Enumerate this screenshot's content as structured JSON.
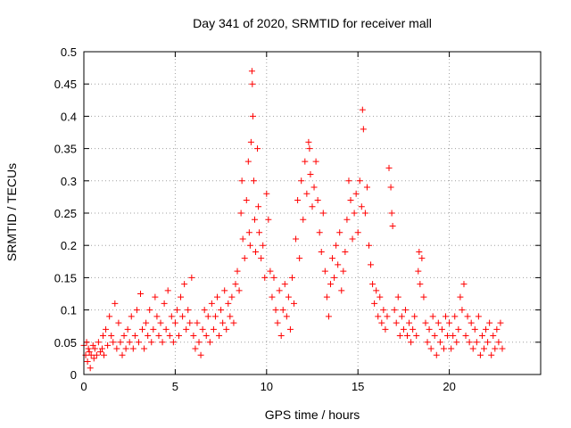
{
  "chart_data": {
    "type": "scatter",
    "title": "Day 341 of 2020, SRMTID for receiver mall",
    "xlabel": "GPS time / hours",
    "ylabel": "SRMTID / TECUs",
    "xlim": [
      0,
      25
    ],
    "ylim": [
      0,
      0.5
    ],
    "xticks": [
      "0",
      "5",
      "10",
      "15",
      "20"
    ],
    "yticks": [
      "0",
      "0.05",
      "0.1",
      "0.15",
      "0.2",
      "0.25",
      "0.3",
      "0.35",
      "0.4",
      "0.45",
      "0.5"
    ],
    "grid": true,
    "marker": "+",
    "color": "#ff0000",
    "series": [
      {
        "name": "",
        "points": [
          [
            0.0,
            0.045
          ],
          [
            0.1,
            0.03
          ],
          [
            0.15,
            0.05
          ],
          [
            0.2,
            0.02
          ],
          [
            0.25,
            0.04
          ],
          [
            0.3,
            0.035
          ],
          [
            0.35,
            0.01
          ],
          [
            0.4,
            0.03
          ],
          [
            0.5,
            0.045
          ],
          [
            0.55,
            0.025
          ],
          [
            0.6,
            0.04
          ],
          [
            0.7,
            0.03
          ],
          [
            0.8,
            0.05
          ],
          [
            0.9,
            0.035
          ],
          [
            1.0,
            0.04
          ],
          [
            1.05,
            0.06
          ],
          [
            1.1,
            0.03
          ],
          [
            1.2,
            0.07
          ],
          [
            1.3,
            0.045
          ],
          [
            1.4,
            0.09
          ],
          [
            1.5,
            0.06
          ],
          [
            1.6,
            0.05
          ],
          [
            1.7,
            0.11
          ],
          [
            1.8,
            0.04
          ],
          [
            1.9,
            0.08
          ],
          [
            2.0,
            0.05
          ],
          [
            2.1,
            0.03
          ],
          [
            2.2,
            0.06
          ],
          [
            2.3,
            0.04
          ],
          [
            2.4,
            0.07
          ],
          [
            2.5,
            0.05
          ],
          [
            2.6,
            0.09
          ],
          [
            2.7,
            0.04
          ],
          [
            2.8,
            0.06
          ],
          [
            2.9,
            0.1
          ],
          [
            3.0,
            0.05
          ],
          [
            3.1,
            0.125
          ],
          [
            3.2,
            0.07
          ],
          [
            3.3,
            0.04
          ],
          [
            3.4,
            0.08
          ],
          [
            3.5,
            0.06
          ],
          [
            3.6,
            0.1
          ],
          [
            3.7,
            0.05
          ],
          [
            3.8,
            0.07
          ],
          [
            3.9,
            0.12
          ],
          [
            4.0,
            0.09
          ],
          [
            4.1,
            0.06
          ],
          [
            4.2,
            0.08
          ],
          [
            4.3,
            0.05
          ],
          [
            4.4,
            0.11
          ],
          [
            4.5,
            0.07
          ],
          [
            4.6,
            0.13
          ],
          [
            4.7,
            0.06
          ],
          [
            4.8,
            0.09
          ],
          [
            4.9,
            0.05
          ],
          [
            5.0,
            0.08
          ],
          [
            5.1,
            0.1
          ],
          [
            5.2,
            0.06
          ],
          [
            5.3,
            0.12
          ],
          [
            5.4,
            0.09
          ],
          [
            5.5,
            0.14
          ],
          [
            5.6,
            0.07
          ],
          [
            5.7,
            0.1
          ],
          [
            5.8,
            0.08
          ],
          [
            5.9,
            0.15
          ],
          [
            6.0,
            0.06
          ],
          [
            6.1,
            0.04
          ],
          [
            6.2,
            0.08
          ],
          [
            6.3,
            0.05
          ],
          [
            6.4,
            0.03
          ],
          [
            6.5,
            0.07
          ],
          [
            6.6,
            0.1
          ],
          [
            6.7,
            0.06
          ],
          [
            6.8,
            0.09
          ],
          [
            6.9,
            0.05
          ],
          [
            7.0,
            0.11
          ],
          [
            7.1,
            0.07
          ],
          [
            7.2,
            0.09
          ],
          [
            7.3,
            0.12
          ],
          [
            7.4,
            0.06
          ],
          [
            7.5,
            0.1
          ],
          [
            7.6,
            0.08
          ],
          [
            7.7,
            0.13
          ],
          [
            7.8,
            0.07
          ],
          [
            7.9,
            0.11
          ],
          [
            8.0,
            0.09
          ],
          [
            8.1,
            0.12
          ],
          [
            8.2,
            0.08
          ],
          [
            8.3,
            0.14
          ],
          [
            8.4,
            0.16
          ],
          [
            8.5,
            0.13
          ],
          [
            8.6,
            0.25
          ],
          [
            8.65,
            0.3
          ],
          [
            8.7,
            0.21
          ],
          [
            8.8,
            0.18
          ],
          [
            8.9,
            0.27
          ],
          [
            9.0,
            0.33
          ],
          [
            9.05,
            0.22
          ],
          [
            9.1,
            0.2
          ],
          [
            9.15,
            0.36
          ],
          [
            9.2,
            0.47
          ],
          [
            9.22,
            0.45
          ],
          [
            9.25,
            0.4
          ],
          [
            9.3,
            0.3
          ],
          [
            9.35,
            0.24
          ],
          [
            9.4,
            0.19
          ],
          [
            9.5,
            0.35
          ],
          [
            9.55,
            0.26
          ],
          [
            9.6,
            0.22
          ],
          [
            9.7,
            0.18
          ],
          [
            9.8,
            0.2
          ],
          [
            9.9,
            0.15
          ],
          [
            10.0,
            0.28
          ],
          [
            10.1,
            0.24
          ],
          [
            10.2,
            0.16
          ],
          [
            10.3,
            0.12
          ],
          [
            10.4,
            0.15
          ],
          [
            10.5,
            0.1
          ],
          [
            10.6,
            0.08
          ],
          [
            10.7,
            0.13
          ],
          [
            10.8,
            0.06
          ],
          [
            10.9,
            0.1
          ],
          [
            11.0,
            0.14
          ],
          [
            11.1,
            0.09
          ],
          [
            11.2,
            0.12
          ],
          [
            11.3,
            0.07
          ],
          [
            11.4,
            0.15
          ],
          [
            11.5,
            0.11
          ],
          [
            11.6,
            0.21
          ],
          [
            11.7,
            0.27
          ],
          [
            11.8,
            0.18
          ],
          [
            11.9,
            0.3
          ],
          [
            12.0,
            0.24
          ],
          [
            12.1,
            0.33
          ],
          [
            12.2,
            0.28
          ],
          [
            12.3,
            0.36
          ],
          [
            12.35,
            0.35
          ],
          [
            12.4,
            0.31
          ],
          [
            12.5,
            0.26
          ],
          [
            12.6,
            0.29
          ],
          [
            12.7,
            0.33
          ],
          [
            12.8,
            0.27
          ],
          [
            12.9,
            0.22
          ],
          [
            13.0,
            0.19
          ],
          [
            13.1,
            0.25
          ],
          [
            13.2,
            0.16
          ],
          [
            13.3,
            0.12
          ],
          [
            13.4,
            0.09
          ],
          [
            13.5,
            0.14
          ],
          [
            13.6,
            0.18
          ],
          [
            13.7,
            0.15
          ],
          [
            13.8,
            0.2
          ],
          [
            13.9,
            0.17
          ],
          [
            14.0,
            0.22
          ],
          [
            14.1,
            0.13
          ],
          [
            14.2,
            0.16
          ],
          [
            14.3,
            0.19
          ],
          [
            14.4,
            0.24
          ],
          [
            14.5,
            0.3
          ],
          [
            14.6,
            0.27
          ],
          [
            14.7,
            0.21
          ],
          [
            14.8,
            0.25
          ],
          [
            14.9,
            0.28
          ],
          [
            15.0,
            0.22
          ],
          [
            15.1,
            0.3
          ],
          [
            15.2,
            0.26
          ],
          [
            15.25,
            0.41
          ],
          [
            15.3,
            0.38
          ],
          [
            15.4,
            0.25
          ],
          [
            15.5,
            0.29
          ],
          [
            15.6,
            0.2
          ],
          [
            15.7,
            0.17
          ],
          [
            15.8,
            0.14
          ],
          [
            15.9,
            0.11
          ],
          [
            16.0,
            0.13
          ],
          [
            16.1,
            0.09
          ],
          [
            16.2,
            0.12
          ],
          [
            16.3,
            0.08
          ],
          [
            16.4,
            0.1
          ],
          [
            16.5,
            0.07
          ],
          [
            16.6,
            0.09
          ],
          [
            16.7,
            0.32
          ],
          [
            16.8,
            0.29
          ],
          [
            16.85,
            0.25
          ],
          [
            16.9,
            0.23
          ],
          [
            17.0,
            0.1
          ],
          [
            17.1,
            0.08
          ],
          [
            17.2,
            0.12
          ],
          [
            17.3,
            0.06
          ],
          [
            17.4,
            0.09
          ],
          [
            17.5,
            0.07
          ],
          [
            17.6,
            0.1
          ],
          [
            17.7,
            0.06
          ],
          [
            17.8,
            0.08
          ],
          [
            17.9,
            0.05
          ],
          [
            18.0,
            0.07
          ],
          [
            18.1,
            0.09
          ],
          [
            18.2,
            0.06
          ],
          [
            18.3,
            0.16
          ],
          [
            18.35,
            0.19
          ],
          [
            18.4,
            0.14
          ],
          [
            18.5,
            0.18
          ],
          [
            18.6,
            0.12
          ],
          [
            18.7,
            0.08
          ],
          [
            18.8,
            0.05
          ],
          [
            18.9,
            0.07
          ],
          [
            19.0,
            0.04
          ],
          [
            19.1,
            0.09
          ],
          [
            19.2,
            0.06
          ],
          [
            19.3,
            0.03
          ],
          [
            19.4,
            0.08
          ],
          [
            19.5,
            0.05
          ],
          [
            19.6,
            0.07
          ],
          [
            19.7,
            0.04
          ],
          [
            19.8,
            0.09
          ],
          [
            19.9,
            0.06
          ],
          [
            20.0,
            0.08
          ],
          [
            20.1,
            0.04
          ],
          [
            20.2,
            0.06
          ],
          [
            20.3,
            0.09
          ],
          [
            20.4,
            0.05
          ],
          [
            20.5,
            0.07
          ],
          [
            20.6,
            0.12
          ],
          [
            20.7,
            0.1
          ],
          [
            20.8,
            0.14
          ],
          [
            20.9,
            0.06
          ],
          [
            21.0,
            0.09
          ],
          [
            21.1,
            0.05
          ],
          [
            21.2,
            0.08
          ],
          [
            21.3,
            0.04
          ],
          [
            21.4,
            0.07
          ],
          [
            21.5,
            0.05
          ],
          [
            21.6,
            0.09
          ],
          [
            21.7,
            0.03
          ],
          [
            21.8,
            0.06
          ],
          [
            21.9,
            0.04
          ],
          [
            22.0,
            0.07
          ],
          [
            22.1,
            0.05
          ],
          [
            22.2,
            0.08
          ],
          [
            22.3,
            0.03
          ],
          [
            22.4,
            0.06
          ],
          [
            22.5,
            0.04
          ],
          [
            22.6,
            0.07
          ],
          [
            22.7,
            0.05
          ],
          [
            22.8,
            0.08
          ],
          [
            22.9,
            0.04
          ]
        ]
      }
    ]
  }
}
